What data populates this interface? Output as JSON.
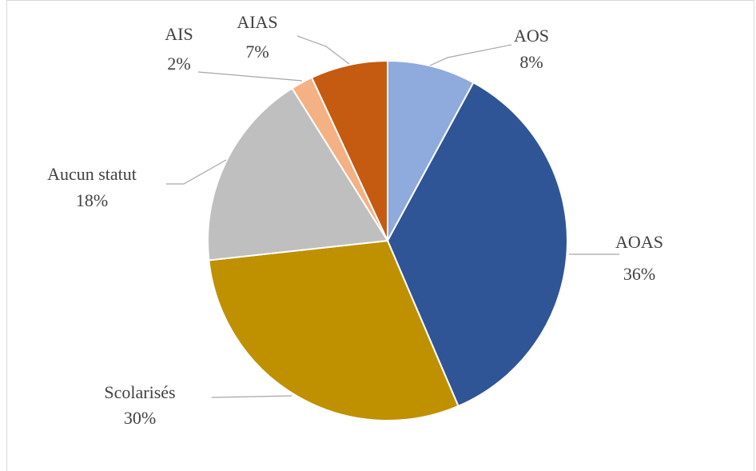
{
  "chart_data": {
    "type": "pie",
    "categories": [
      "AOS",
      "AOAS",
      "Scolarisés",
      "Aucun statut",
      "AIS",
      "AIAS"
    ],
    "values": [
      8,
      36,
      30,
      18,
      2,
      7
    ],
    "value_labels": [
      "8%",
      "36%",
      "30%",
      "18%",
      "2%",
      "7%"
    ],
    "colors": [
      "#8faadc",
      "#2f5597",
      "#bf9000",
      "#bfbfbf",
      "#f4b183",
      "#c55a11"
    ]
  }
}
